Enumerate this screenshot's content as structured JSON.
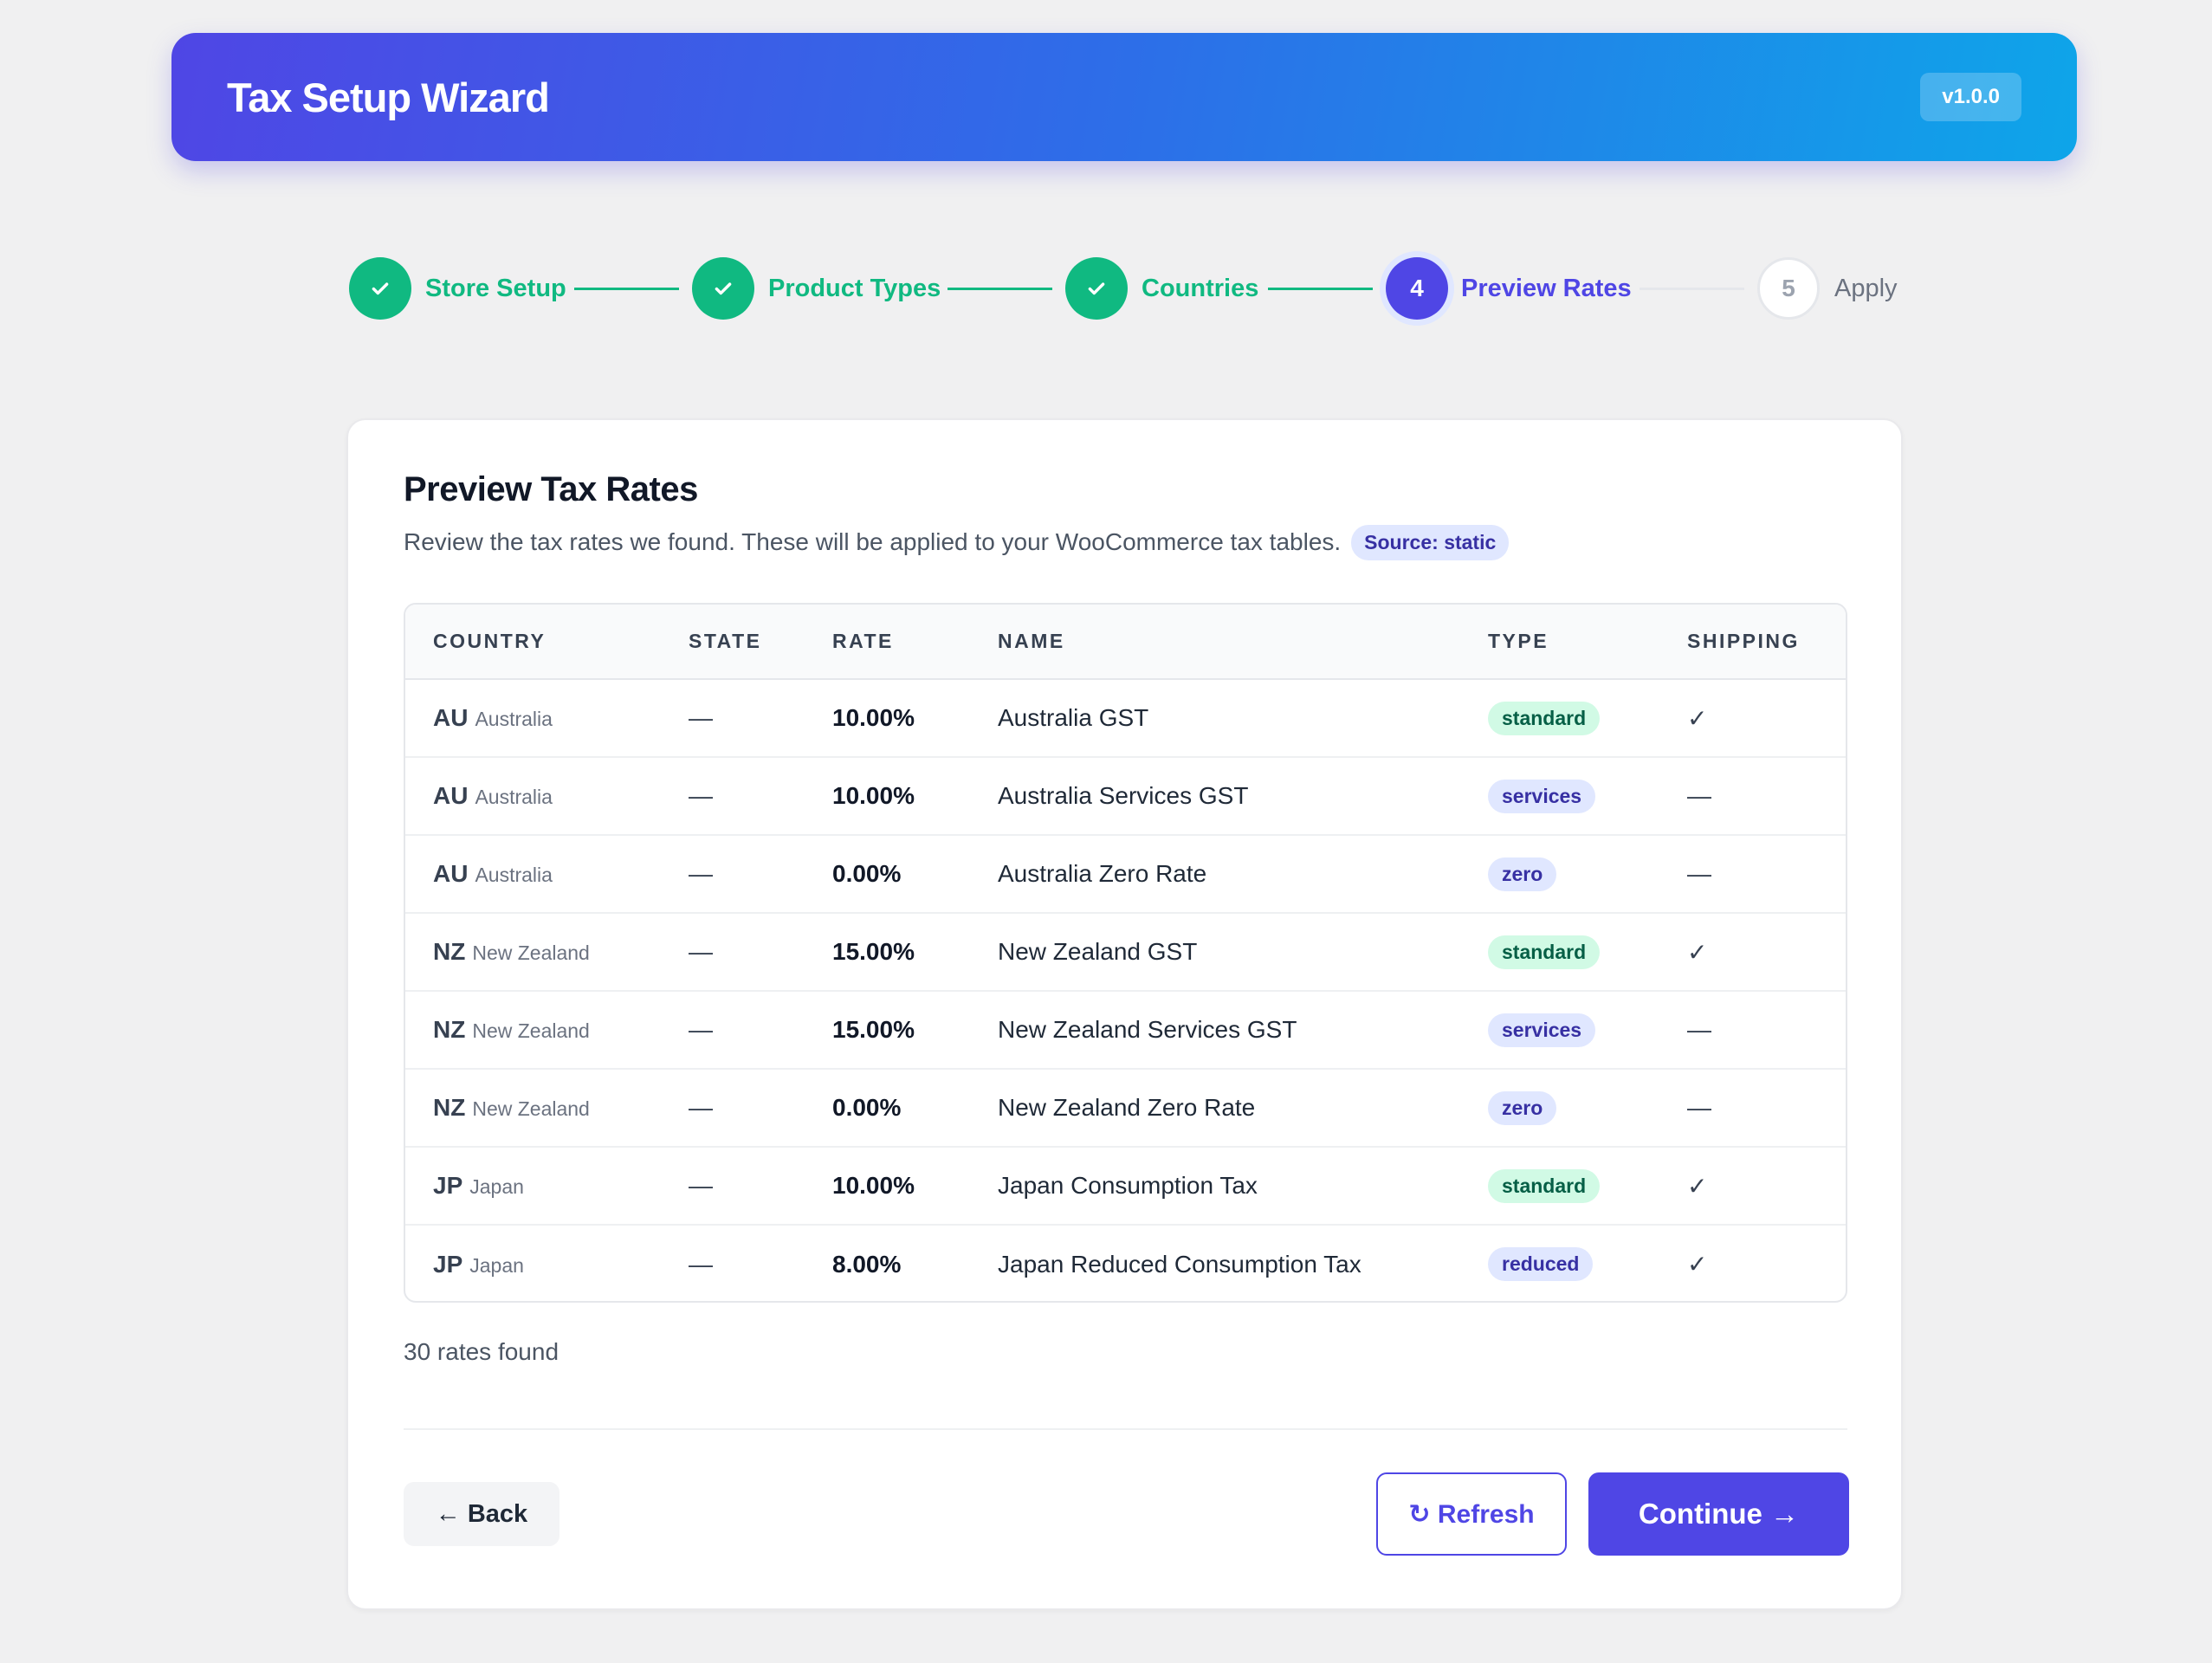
{
  "header": {
    "title": "Tax Setup Wizard",
    "version": "v1.0.0"
  },
  "steps": [
    {
      "number": "1",
      "label": "Store Setup",
      "status": "done",
      "icon": "check-icon"
    },
    {
      "number": "2",
      "label": "Product Types",
      "status": "done",
      "icon": "check-icon"
    },
    {
      "number": "3",
      "label": "Countries",
      "status": "done",
      "icon": "check-icon"
    },
    {
      "number": "4",
      "label": "Preview Rates",
      "status": "active"
    },
    {
      "number": "5",
      "label": "Apply",
      "status": "pending"
    }
  ],
  "card": {
    "title": "Preview Tax Rates",
    "subtitle": "Review the tax rates we found. These will be applied to your WooCommerce tax tables.",
    "source_badge": "Source: static"
  },
  "table": {
    "headers": [
      "COUNTRY",
      "STATE",
      "RATE",
      "NAME",
      "TYPE",
      "SHIPPING"
    ],
    "rows": [
      {
        "code": "AU",
        "country": "Australia",
        "state": "—",
        "rate": "10.00%",
        "name": "Australia GST",
        "type": "standard",
        "shipping": "✓"
      },
      {
        "code": "AU",
        "country": "Australia",
        "state": "—",
        "rate": "10.00%",
        "name": "Australia Services GST",
        "type": "services",
        "shipping": "—"
      },
      {
        "code": "AU",
        "country": "Australia",
        "state": "—",
        "rate": "0.00%",
        "name": "Australia Zero Rate",
        "type": "zero",
        "shipping": "—"
      },
      {
        "code": "NZ",
        "country": "New Zealand",
        "state": "—",
        "rate": "15.00%",
        "name": "New Zealand GST",
        "type": "standard",
        "shipping": "✓"
      },
      {
        "code": "NZ",
        "country": "New Zealand",
        "state": "—",
        "rate": "15.00%",
        "name": "New Zealand Services GST",
        "type": "services",
        "shipping": "—"
      },
      {
        "code": "NZ",
        "country": "New Zealand",
        "state": "—",
        "rate": "0.00%",
        "name": "New Zealand Zero Rate",
        "type": "zero",
        "shipping": "—"
      },
      {
        "code": "JP",
        "country": "Japan",
        "state": "—",
        "rate": "10.00%",
        "name": "Japan Consumption Tax",
        "type": "standard",
        "shipping": "✓"
      },
      {
        "code": "JP",
        "country": "Japan",
        "state": "—",
        "rate": "8.00%",
        "name": "Japan Reduced Consumption Tax",
        "type": "reduced",
        "shipping": "✓"
      }
    ]
  },
  "rates_found": "30 rates found",
  "buttons": {
    "back": "← Back",
    "refresh": "↻ Refresh",
    "continue": "Continue →"
  },
  "colors": {
    "accent": "#4f46e5",
    "success": "#10b981",
    "header_gradient_start": "#4f46e5",
    "header_gradient_end": "#0ea5e9"
  }
}
